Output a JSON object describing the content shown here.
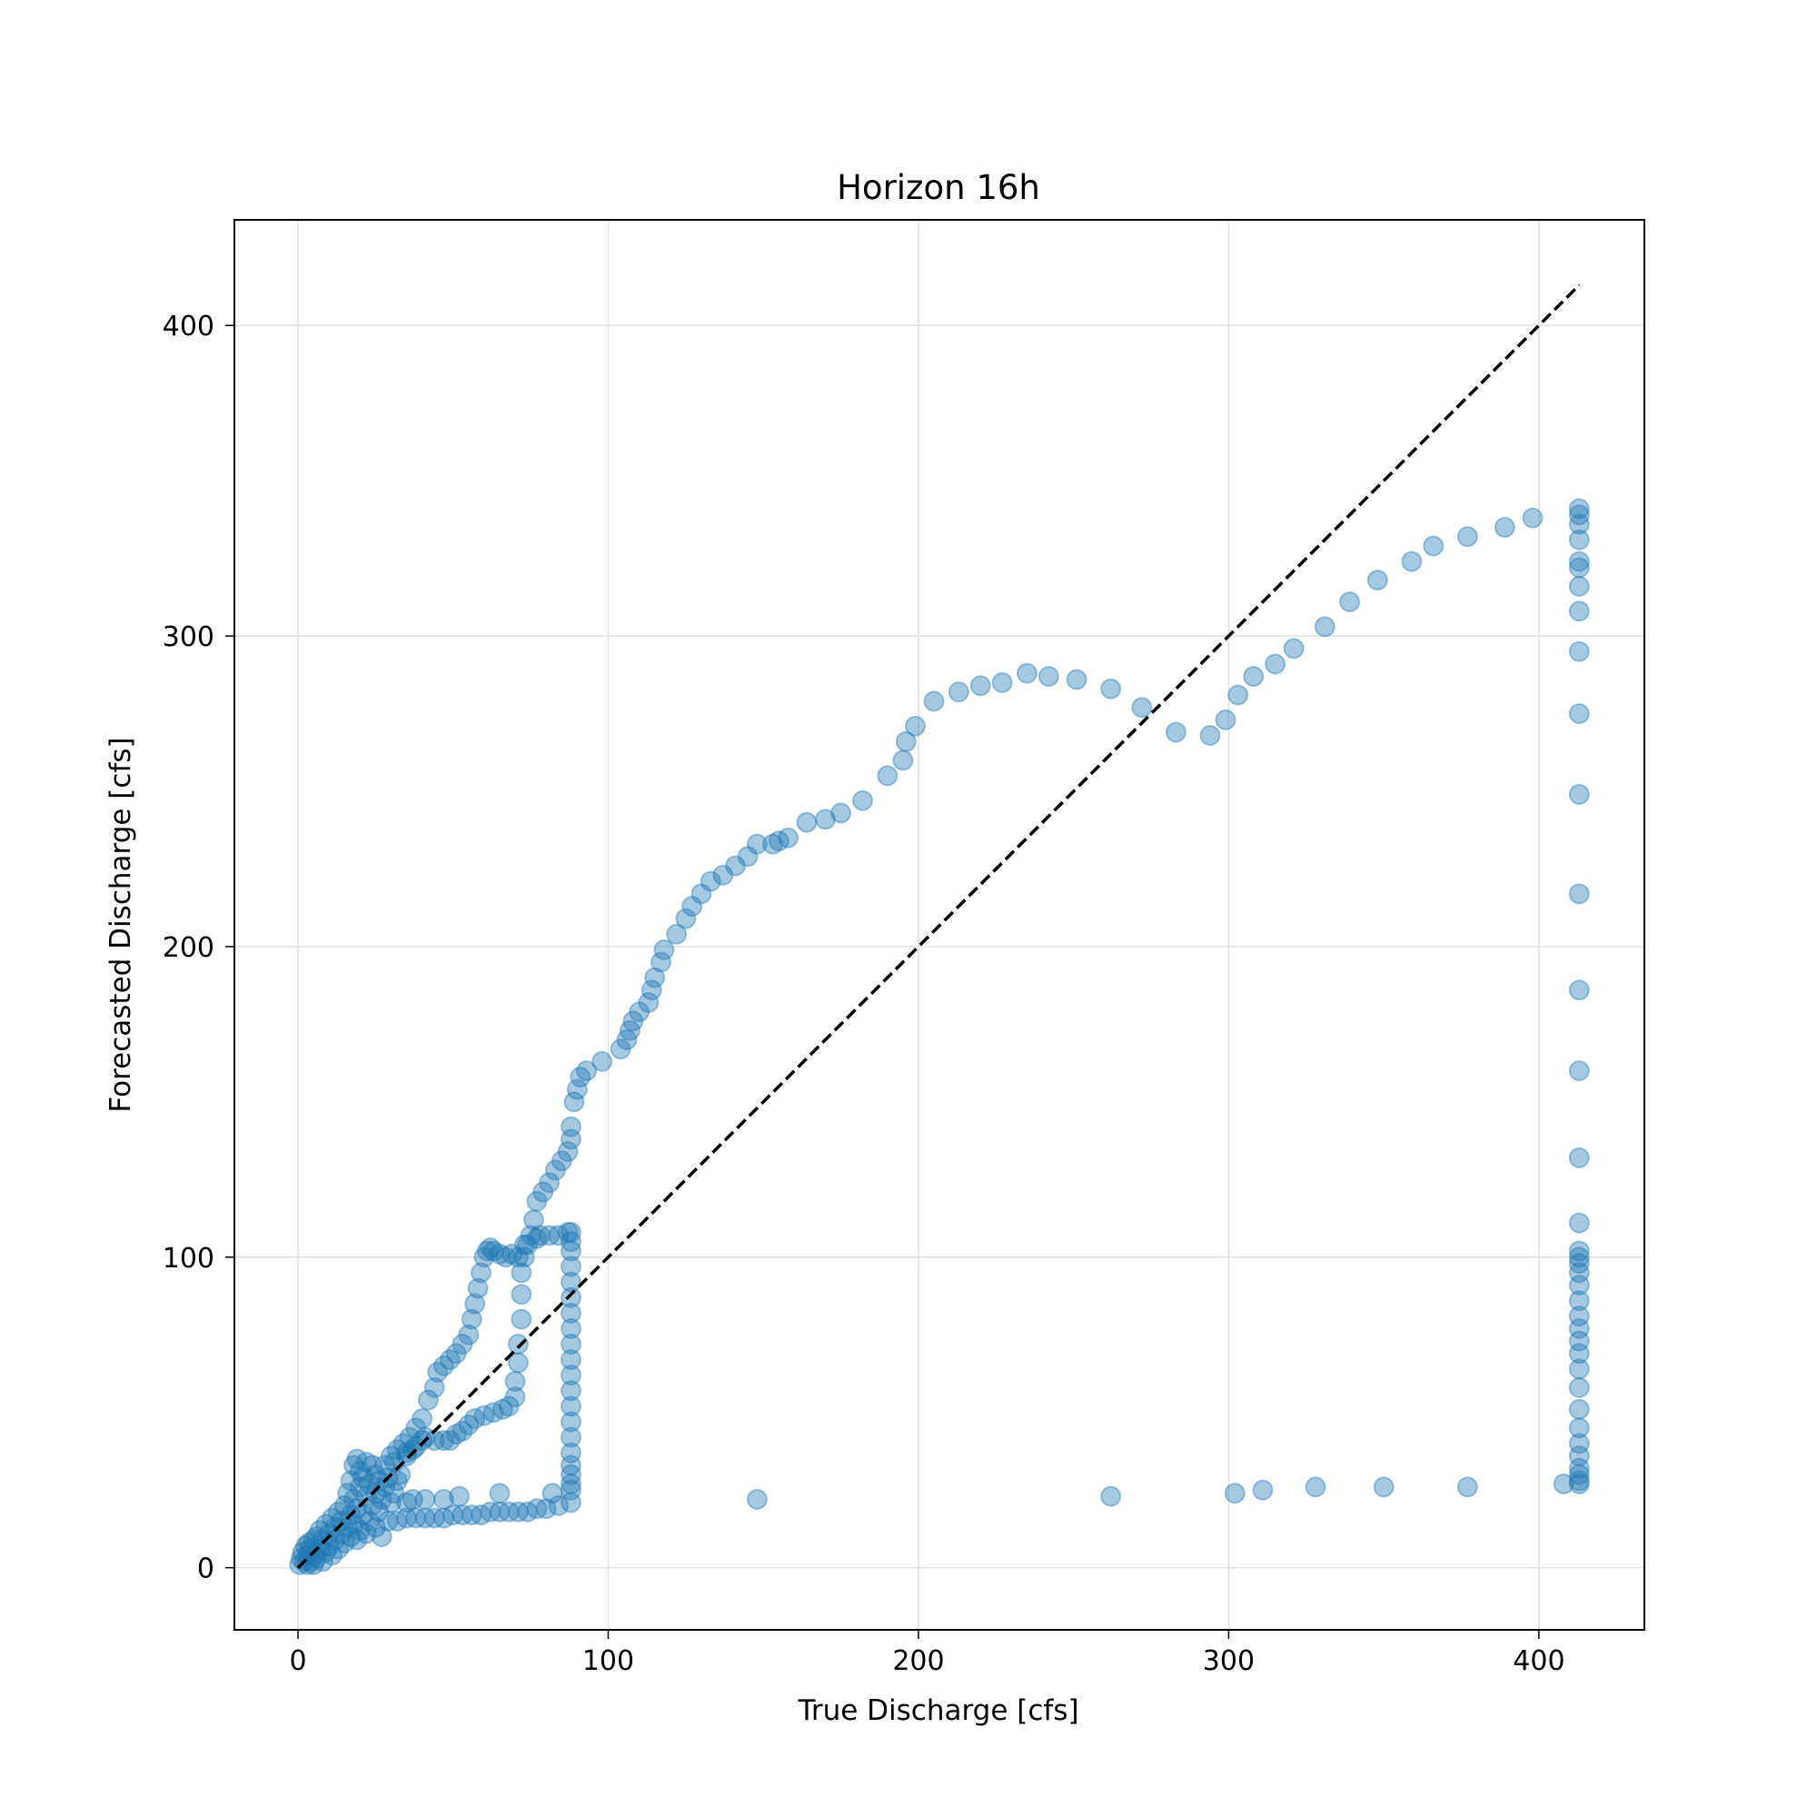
{
  "chart_data": {
    "type": "scatter",
    "title": "Horizon 16h",
    "xlabel": "True Discharge [cfs]",
    "ylabel": "Forecasted Discharge [cfs]",
    "xlim": [
      -20.5,
      434
    ],
    "ylim": [
      -20,
      434
    ],
    "xticks": [
      0,
      100,
      200,
      300,
      400
    ],
    "yticks": [
      0,
      100,
      200,
      300,
      400
    ],
    "grid": true,
    "marker_color": "#1f77b4",
    "marker_alpha": 0.4,
    "reference_line": {
      "style": "dashed",
      "color": "#000000",
      "from": [
        0,
        0
      ],
      "to": [
        413,
        413
      ]
    },
    "series": [
      {
        "points": [
          [
            0.5,
            1
          ],
          [
            1,
            3
          ],
          [
            1.5,
            5
          ],
          [
            2,
            2
          ],
          [
            2.5,
            7
          ],
          [
            3,
            1
          ],
          [
            3,
            4
          ],
          [
            3.5,
            8
          ],
          [
            4,
            2
          ],
          [
            4,
            6
          ],
          [
            5,
            1
          ],
          [
            5,
            9
          ],
          [
            5.5,
            4
          ],
          [
            6,
            3
          ],
          [
            6,
            10
          ],
          [
            7,
            6
          ],
          [
            7,
            12
          ],
          [
            8,
            2
          ],
          [
            8,
            9
          ],
          [
            9,
            5
          ],
          [
            9,
            14
          ],
          [
            10,
            7
          ],
          [
            10,
            11
          ],
          [
            11,
            16
          ],
          [
            11,
            4
          ],
          [
            12,
            9
          ],
          [
            12,
            13
          ],
          [
            13,
            18
          ],
          [
            13,
            6
          ],
          [
            14,
            11
          ],
          [
            14,
            15
          ],
          [
            15,
            20
          ],
          [
            15,
            8
          ],
          [
            16,
            13
          ],
          [
            16,
            24
          ],
          [
            17,
            10
          ],
          [
            17,
            17
          ],
          [
            17,
            28
          ],
          [
            18,
            14
          ],
          [
            18,
            22
          ],
          [
            18,
            33
          ],
          [
            19,
            9
          ],
          [
            19,
            19
          ],
          [
            19,
            35
          ],
          [
            20,
            12
          ],
          [
            20,
            26
          ],
          [
            20,
            31
          ],
          [
            21,
            17
          ],
          [
            21,
            29
          ],
          [
            22,
            11
          ],
          [
            22,
            23
          ],
          [
            22,
            34
          ],
          [
            23,
            15
          ],
          [
            23,
            27
          ],
          [
            24,
            20
          ],
          [
            24,
            33
          ],
          [
            25,
            13
          ],
          [
            25,
            24
          ],
          [
            25,
            30
          ],
          [
            26,
            18
          ],
          [
            26,
            28
          ],
          [
            27,
            22
          ],
          [
            27,
            10
          ],
          [
            28,
            26
          ],
          [
            28,
            33
          ],
          [
            29,
            15
          ],
          [
            29,
            29
          ],
          [
            30,
            21
          ],
          [
            30,
            36
          ],
          [
            31,
            24
          ],
          [
            31,
            34
          ],
          [
            32,
            28
          ],
          [
            32,
            38
          ],
          [
            33,
            30
          ],
          [
            34,
            40
          ],
          [
            35,
            36
          ],
          [
            36,
            42
          ],
          [
            37,
            38
          ],
          [
            38,
            45
          ],
          [
            40,
            48
          ],
          [
            42,
            54
          ],
          [
            44,
            58
          ],
          [
            45,
            63
          ],
          [
            47,
            65
          ],
          [
            49,
            67
          ],
          [
            51,
            69
          ],
          [
            53,
            72
          ],
          [
            55,
            75
          ],
          [
            56,
            80
          ],
          [
            57,
            85
          ],
          [
            58,
            90
          ],
          [
            59,
            95
          ],
          [
            60,
            100
          ],
          [
            61,
            102
          ],
          [
            62,
            103
          ],
          [
            63,
            102
          ],
          [
            65,
            101
          ],
          [
            67,
            100
          ],
          [
            69,
            101
          ],
          [
            71,
            100
          ],
          [
            73,
            100
          ],
          [
            74,
            104
          ],
          [
            75,
            107
          ],
          [
            76,
            112
          ],
          [
            77,
            118
          ],
          [
            79,
            121
          ],
          [
            81,
            124
          ],
          [
            83,
            128
          ],
          [
            85,
            131
          ],
          [
            87,
            134
          ],
          [
            88,
            138
          ],
          [
            88,
            142
          ],
          [
            89,
            150
          ],
          [
            90,
            154
          ],
          [
            91,
            158
          ],
          [
            93,
            160
          ],
          [
            98,
            163
          ],
          [
            104,
            167
          ],
          [
            106,
            170
          ],
          [
            107,
            173
          ],
          [
            108,
            176
          ],
          [
            110,
            179
          ],
          [
            113,
            182
          ],
          [
            114,
            186
          ],
          [
            115,
            190
          ],
          [
            117,
            195
          ],
          [
            118,
            199
          ],
          [
            122,
            204
          ],
          [
            125,
            209
          ],
          [
            127,
            213
          ],
          [
            130,
            217
          ],
          [
            133,
            221
          ],
          [
            137,
            223
          ],
          [
            141,
            226
          ],
          [
            145,
            229
          ],
          [
            148,
            233
          ],
          [
            153,
            233
          ],
          [
            155,
            234
          ],
          [
            158,
            235
          ],
          [
            164,
            240
          ],
          [
            170,
            241
          ],
          [
            175,
            243
          ],
          [
            182,
            247
          ],
          [
            190,
            255
          ],
          [
            195,
            260
          ],
          [
            196,
            266
          ],
          [
            199,
            271
          ],
          [
            205,
            279
          ],
          [
            213,
            282
          ],
          [
            220,
            284
          ],
          [
            227,
            285
          ],
          [
            235,
            288
          ],
          [
            242,
            287
          ],
          [
            251,
            286
          ],
          [
            262,
            283
          ],
          [
            272,
            277
          ],
          [
            283,
            269
          ],
          [
            294,
            268
          ],
          [
            299,
            273
          ],
          [
            303,
            281
          ],
          [
            308,
            287
          ],
          [
            315,
            291
          ],
          [
            321,
            296
          ],
          [
            331,
            303
          ],
          [
            339,
            311
          ],
          [
            348,
            318
          ],
          [
            359,
            324
          ],
          [
            366,
            329
          ],
          [
            377,
            332
          ],
          [
            389,
            335
          ],
          [
            398,
            338
          ],
          [
            413,
            341
          ],
          [
            413,
            339
          ],
          [
            413,
            336
          ],
          [
            413,
            331
          ],
          [
            413,
            324
          ],
          [
            413,
            322
          ],
          [
            413,
            316
          ],
          [
            413,
            308
          ],
          [
            413,
            295
          ],
          [
            413,
            275
          ],
          [
            413,
            249
          ],
          [
            413,
            217
          ],
          [
            413,
            186
          ],
          [
            413,
            160
          ],
          [
            413,
            132
          ],
          [
            413,
            111
          ],
          [
            413,
            102
          ],
          [
            413,
            100
          ],
          [
            413,
            98
          ],
          [
            413,
            95
          ],
          [
            413,
            91
          ],
          [
            413,
            86
          ],
          [
            413,
            81
          ],
          [
            413,
            77
          ],
          [
            413,
            73
          ],
          [
            413,
            69
          ],
          [
            413,
            64
          ],
          [
            413,
            58
          ],
          [
            413,
            51
          ],
          [
            413,
            45
          ],
          [
            413,
            40
          ],
          [
            413,
            36
          ],
          [
            413,
            32
          ],
          [
            413,
            30
          ],
          [
            413,
            28
          ],
          [
            413,
            27
          ],
          [
            408,
            27
          ],
          [
            377,
            26
          ],
          [
            350,
            26
          ],
          [
            328,
            26
          ],
          [
            311,
            25
          ],
          [
            302,
            24
          ],
          [
            262,
            23
          ],
          [
            148,
            22
          ],
          [
            88,
            25
          ],
          [
            88,
            27
          ],
          [
            88,
            30
          ],
          [
            88,
            33
          ],
          [
            88,
            37
          ],
          [
            88,
            42
          ],
          [
            88,
            47
          ],
          [
            88,
            52
          ],
          [
            88,
            57
          ],
          [
            88,
            62
          ],
          [
            88,
            67
          ],
          [
            88,
            72
          ],
          [
            88,
            77
          ],
          [
            88,
            82
          ],
          [
            88,
            87
          ],
          [
            88,
            92
          ],
          [
            88,
            97
          ],
          [
            88,
            102
          ],
          [
            88,
            105
          ],
          [
            88,
            108
          ],
          [
            87,
            108
          ],
          [
            84,
            107
          ],
          [
            81,
            107
          ],
          [
            78,
            107
          ],
          [
            77,
            106
          ],
          [
            73,
            104
          ],
          [
            72,
            95
          ],
          [
            72,
            88
          ],
          [
            72,
            80
          ],
          [
            71,
            72
          ],
          [
            71,
            66
          ],
          [
            70,
            60
          ],
          [
            70,
            55
          ],
          [
            68,
            52
          ],
          [
            66,
            51
          ],
          [
            63,
            50
          ],
          [
            60,
            49
          ],
          [
            57,
            48
          ],
          [
            55,
            46
          ],
          [
            53,
            44
          ],
          [
            51,
            43
          ],
          [
            49,
            41
          ],
          [
            47,
            41
          ],
          [
            44,
            41
          ],
          [
            41,
            42
          ],
          [
            40,
            41
          ],
          [
            38,
            39
          ],
          [
            35,
            37
          ],
          [
            88,
            21
          ],
          [
            84,
            20
          ],
          [
            80,
            19
          ],
          [
            77,
            19
          ],
          [
            74,
            18
          ],
          [
            71,
            18
          ],
          [
            68,
            18
          ],
          [
            65,
            18
          ],
          [
            62,
            18
          ],
          [
            59,
            17
          ],
          [
            56,
            17
          ],
          [
            53,
            17
          ],
          [
            50,
            17
          ],
          [
            47,
            16
          ],
          [
            44,
            16
          ],
          [
            41,
            16
          ],
          [
            38,
            16
          ],
          [
            35,
            16
          ],
          [
            32,
            15
          ],
          [
            65,
            24
          ],
          [
            52,
            23
          ],
          [
            47,
            22
          ],
          [
            41,
            22
          ],
          [
            37,
            22
          ],
          [
            35,
            21
          ],
          [
            82,
            24
          ]
        ]
      }
    ]
  }
}
